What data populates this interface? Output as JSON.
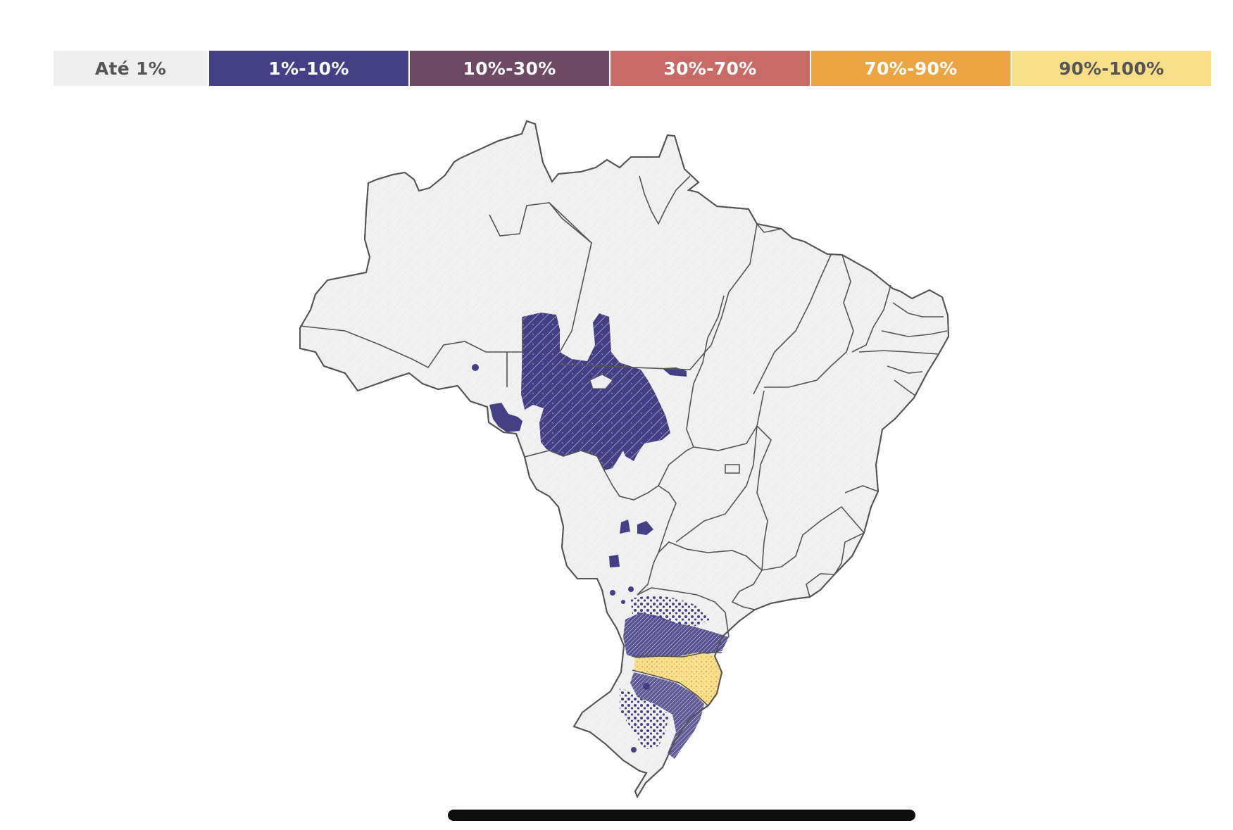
{
  "legend": {
    "items": [
      {
        "label": "Até 1%",
        "color": "#efefef",
        "text_color": "#555555"
      },
      {
        "label": "1%-10%",
        "color": "#453f86",
        "text_color": "#ffffff"
      },
      {
        "label": "10%-30%",
        "color": "#6e4964",
        "text_color": "#ffffff"
      },
      {
        "label": "30%-70%",
        "color": "#c86b66",
        "text_color": "#ffffff"
      },
      {
        "label": "70%-90%",
        "color": "#eba441",
        "text_color": "#ffffff"
      },
      {
        "label": "90%-100%",
        "color": "#f7de87",
        "text_color": "#555555"
      }
    ]
  },
  "map": {
    "country_fill": "#efefef",
    "border_color": "#555555",
    "municipality_line_color": "#ffffff",
    "highlight_colors": {
      "low": "#453f86",
      "high": "#f7de87",
      "mid_high": "#eba441"
    }
  }
}
